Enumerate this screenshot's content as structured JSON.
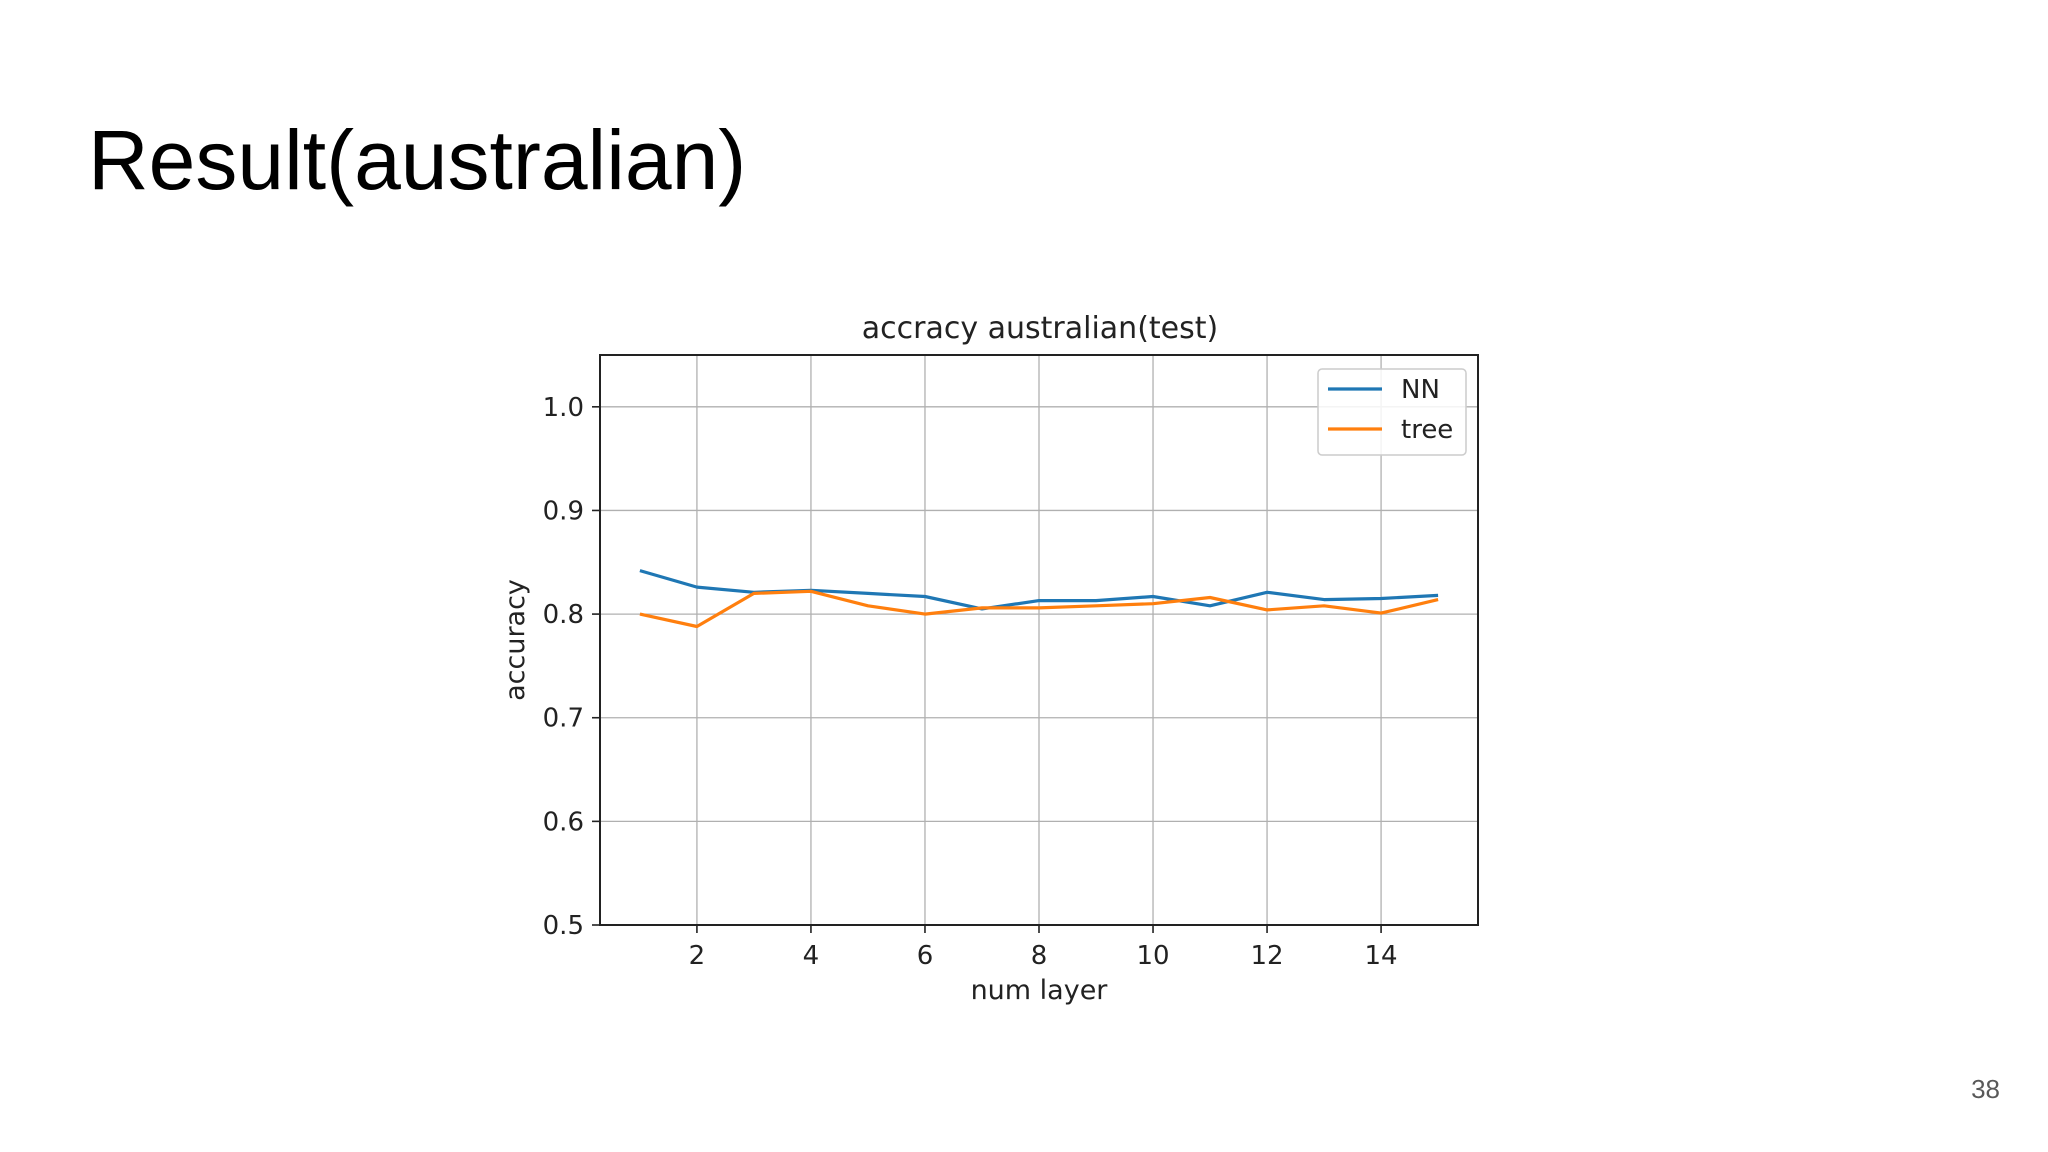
{
  "slide": {
    "title": "Result(australian)",
    "page_number": "38"
  },
  "chart_data": {
    "type": "line",
    "title": "accracy australian(test)",
    "xlabel": "num layer",
    "ylabel": "accuracy",
    "xlim": [
      0.3,
      15.7
    ],
    "ylim": [
      0.5,
      1.05
    ],
    "xticks": [
      2,
      4,
      6,
      8,
      10,
      12,
      14
    ],
    "xtick_labels": [
      "2",
      "4",
      "6",
      "8",
      "10",
      "12",
      "14"
    ],
    "yticks": [
      0.5,
      0.6,
      0.7,
      0.8,
      0.9,
      1.0
    ],
    "ytick_labels": [
      "0.5",
      "0.6",
      "0.7",
      "0.8",
      "0.9",
      "1.0"
    ],
    "grid": true,
    "legend_position": "top-right",
    "x": [
      1,
      2,
      3,
      4,
      5,
      6,
      7,
      8,
      9,
      10,
      11,
      12,
      13,
      14,
      15
    ],
    "series": [
      {
        "name": "NN",
        "color": "#1f77b4",
        "values": [
          0.842,
          0.826,
          0.821,
          0.823,
          0.82,
          0.817,
          0.805,
          0.813,
          0.813,
          0.817,
          0.808,
          0.821,
          0.814,
          0.815,
          0.818
        ]
      },
      {
        "name": "tree",
        "color": "#ff7f0e",
        "values": [
          0.8,
          0.788,
          0.82,
          0.822,
          0.808,
          0.8,
          0.806,
          0.806,
          0.808,
          0.81,
          0.816,
          0.804,
          0.808,
          0.801,
          0.814
        ]
      }
    ]
  }
}
